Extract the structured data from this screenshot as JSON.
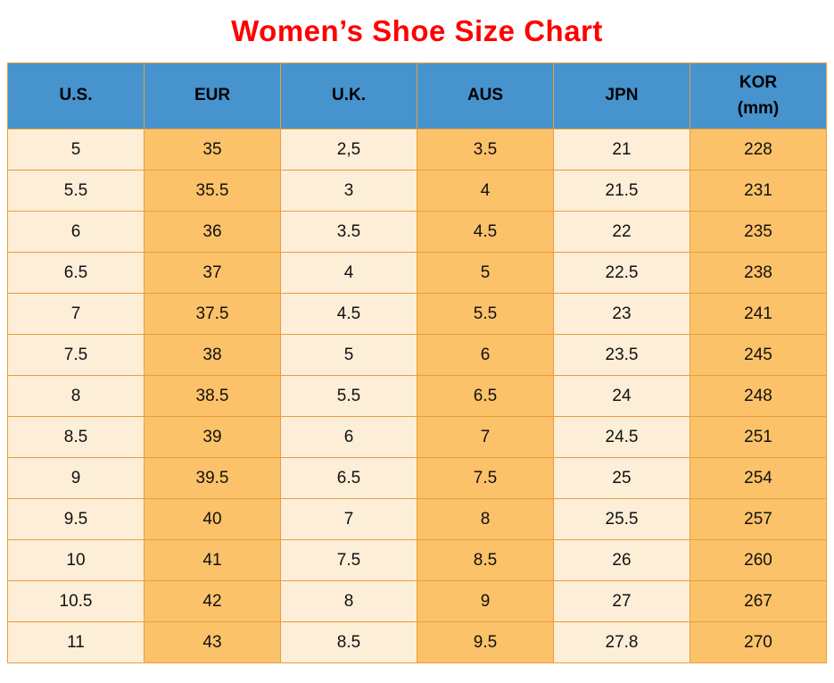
{
  "page": {
    "title": "Women’s Shoe Size Chart"
  },
  "chart_data": {
    "type": "table",
    "title": "Women’s Shoe Size Chart",
    "columns": [
      {
        "label": "U.S.",
        "sublabel": ""
      },
      {
        "label": "EUR",
        "sublabel": ""
      },
      {
        "label": "U.K.",
        "sublabel": ""
      },
      {
        "label": "AUS",
        "sublabel": ""
      },
      {
        "label": "JPN",
        "sublabel": ""
      },
      {
        "label": "KOR",
        "sublabel": "(mm)"
      }
    ],
    "rows": [
      [
        "5",
        "35",
        "2,5",
        "3.5",
        "21",
        "228"
      ],
      [
        "5.5",
        "35.5",
        "3",
        "4",
        "21.5",
        "231"
      ],
      [
        "6",
        "36",
        "3.5",
        "4.5",
        "22",
        "235"
      ],
      [
        "6.5",
        "37",
        "4",
        "5",
        "22.5",
        "238"
      ],
      [
        "7",
        "37.5",
        "4.5",
        "5.5",
        "23",
        "241"
      ],
      [
        "7.5",
        "38",
        "5",
        "6",
        "23.5",
        "245"
      ],
      [
        "8",
        "38.5",
        "5.5",
        "6.5",
        "24",
        "248"
      ],
      [
        "8.5",
        "39",
        "6",
        "7",
        "24.5",
        "251"
      ],
      [
        "9",
        "39.5",
        "6.5",
        "7.5",
        "25",
        "254"
      ],
      [
        "9.5",
        "40",
        "7",
        "8",
        "25.5",
        "257"
      ],
      [
        "10",
        "41",
        "7.5",
        "8.5",
        "26",
        "260"
      ],
      [
        "10.5",
        "42",
        "8",
        "9",
        "27",
        "267"
      ],
      [
        "11",
        "43",
        "8.5",
        "9.5",
        "27.8",
        "270"
      ]
    ]
  },
  "style": {
    "title_color": "#ff0000",
    "header_bg": "#4693ce",
    "header_text_color": "#000000",
    "cell_cream": "#fdeed7",
    "cell_orange": "#fbc269",
    "border_color": "#e99e3c",
    "column_pattern": [
      "cream",
      "orange",
      "cream",
      "orange",
      "cream",
      "orange"
    ]
  }
}
